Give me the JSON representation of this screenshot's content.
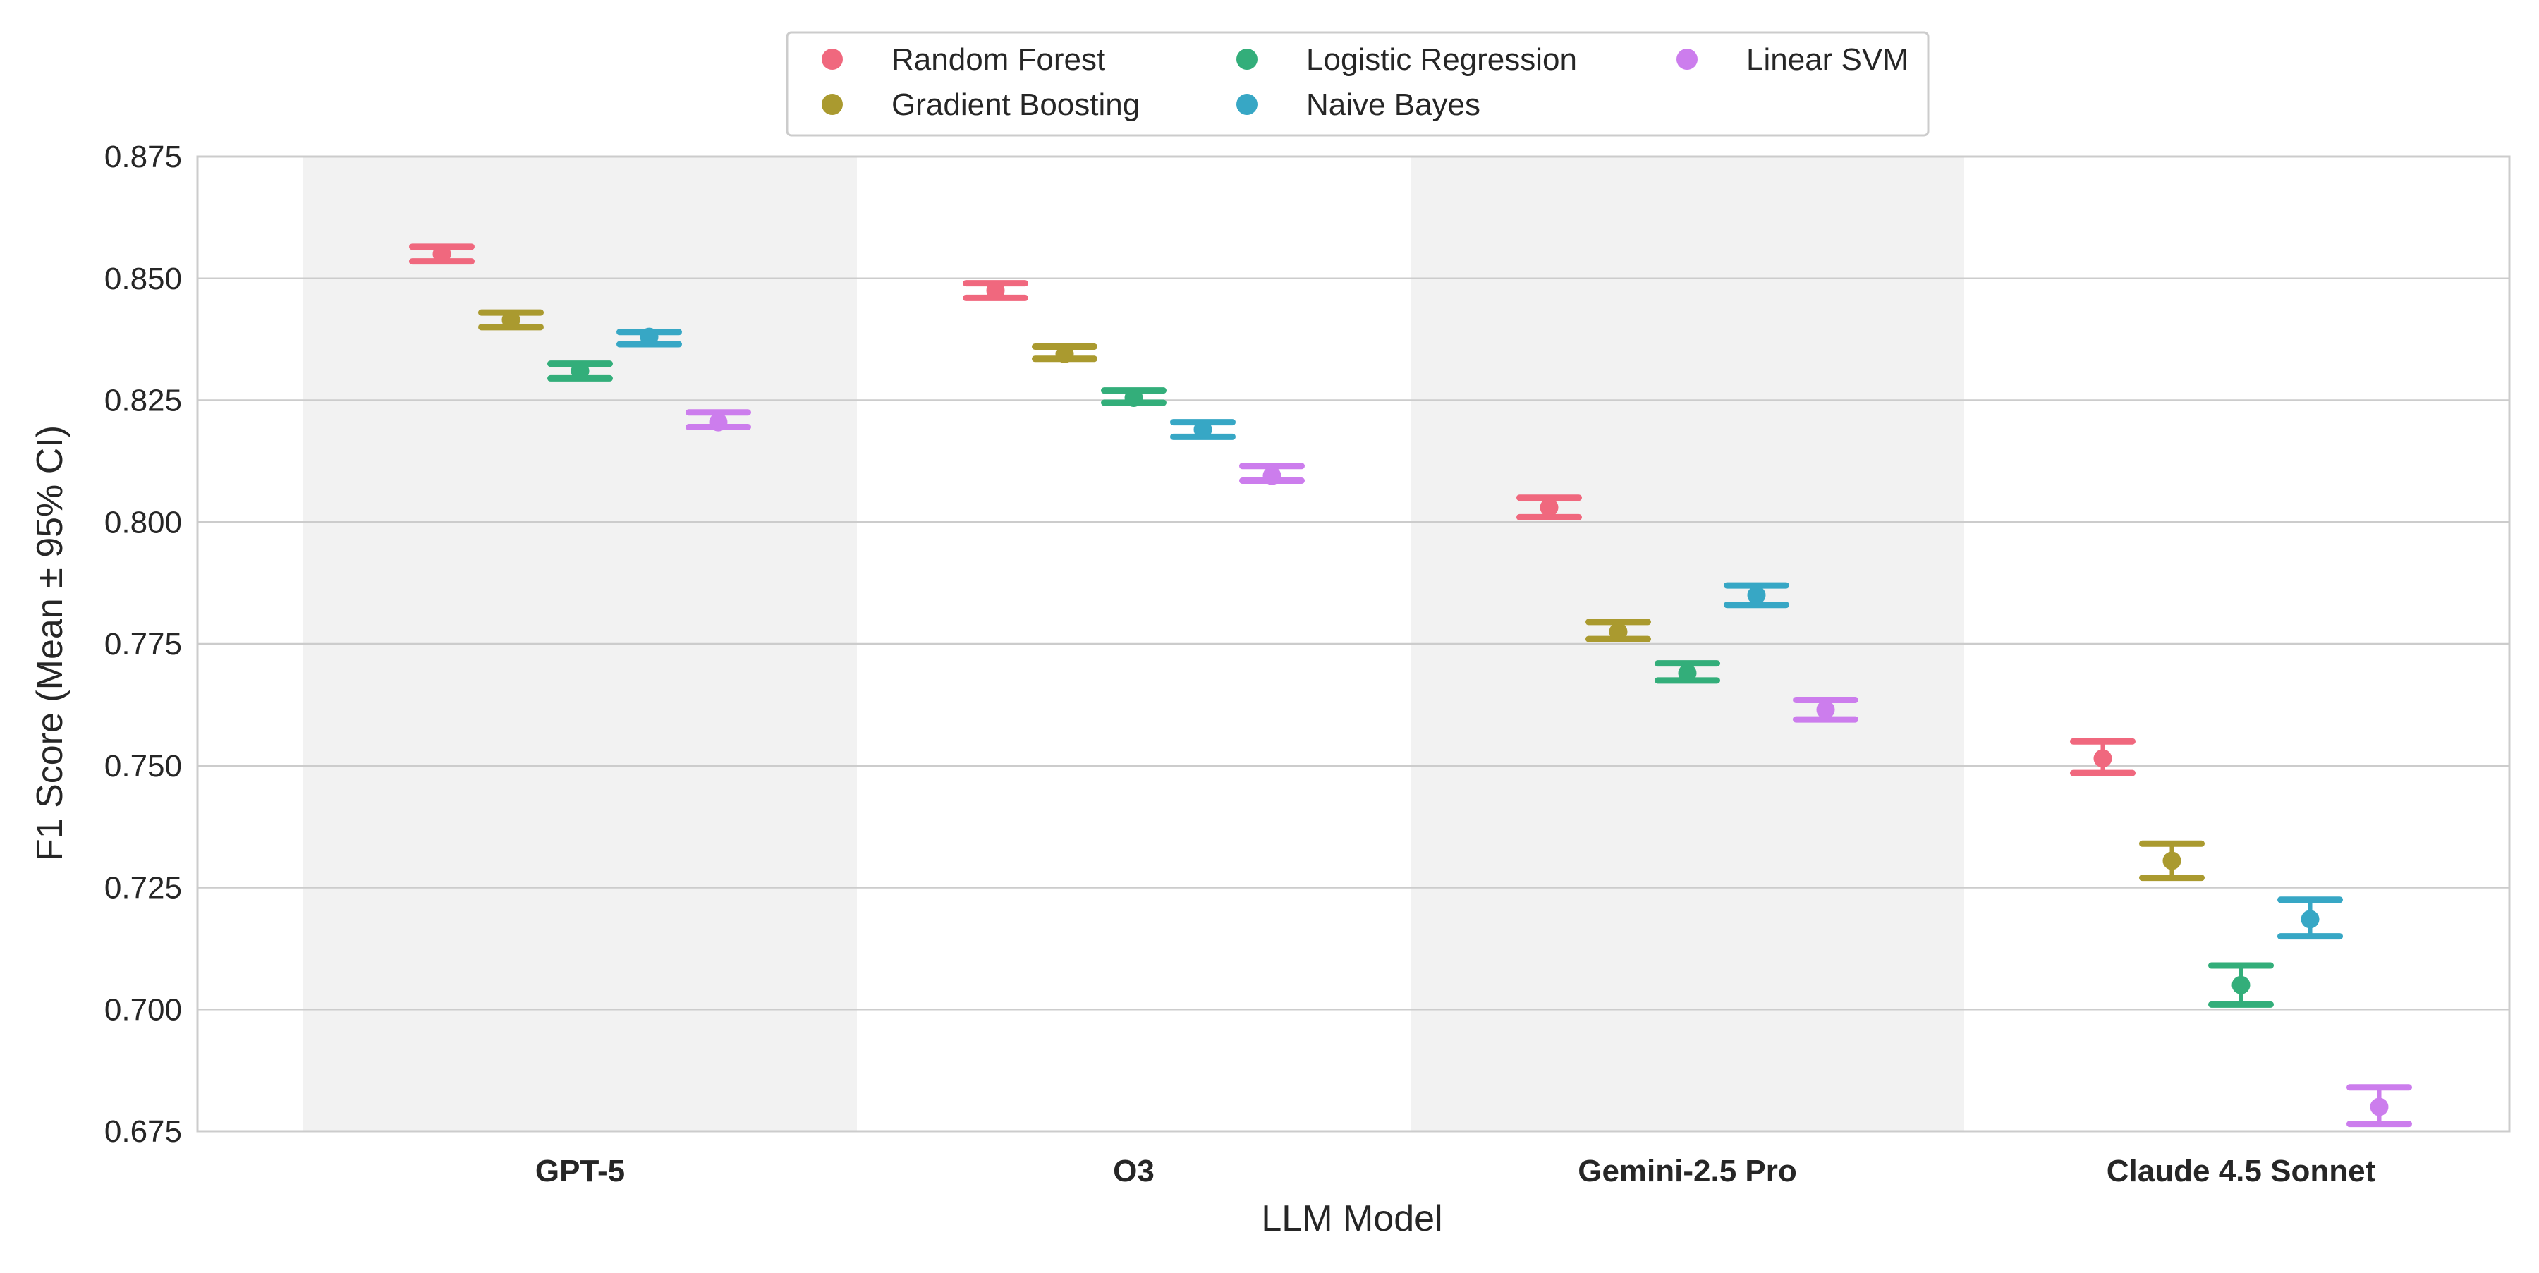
{
  "chart_data": {
    "type": "scatter",
    "xlabel": "LLM Model",
    "ylabel": "F1 Score (Mean ± 95% CI)",
    "ylim": [
      0.675,
      0.875
    ],
    "yticks": [
      "0.675",
      "0.700",
      "0.725",
      "0.750",
      "0.775",
      "0.800",
      "0.825",
      "0.850",
      "0.875"
    ],
    "grid": "horizontal",
    "legend_position": "top-center",
    "categories": [
      "GPT-5",
      "O3",
      "Gemini-2.5 Pro",
      "Claude 4.5 Sonnet"
    ],
    "shaded_categories": [
      0,
      2
    ],
    "series": [
      {
        "name": "Random Forest",
        "color": "#f0687e",
        "mean": [
          0.855,
          0.8475,
          0.803,
          0.7515
        ],
        "lower": [
          0.8535,
          0.846,
          0.801,
          0.7485
        ],
        "upper": [
          0.8565,
          0.849,
          0.805,
          0.755
        ]
      },
      {
        "name": "Gradient Boosting",
        "color": "#aa9a2f",
        "mean": [
          0.8415,
          0.8345,
          0.7775,
          0.7305
        ],
        "lower": [
          0.84,
          0.8335,
          0.776,
          0.727
        ],
        "upper": [
          0.843,
          0.836,
          0.7795,
          0.734
        ]
      },
      {
        "name": "Logistic Regression",
        "color": "#33ae7a",
        "mean": [
          0.831,
          0.8255,
          0.769,
          0.705
        ],
        "lower": [
          0.8295,
          0.8245,
          0.7675,
          0.701
        ],
        "upper": [
          0.8325,
          0.827,
          0.771,
          0.709
        ]
      },
      {
        "name": "Naive Bayes",
        "color": "#37a7c5",
        "mean": [
          0.838,
          0.819,
          0.785,
          0.7185
        ],
        "lower": [
          0.8365,
          0.8175,
          0.783,
          0.715
        ],
        "upper": [
          0.839,
          0.8205,
          0.787,
          0.7225
        ]
      },
      {
        "name": "Linear SVM",
        "color": "#cc7ded",
        "mean": [
          0.8205,
          0.8095,
          0.7615,
          0.68
        ],
        "lower": [
          0.8195,
          0.8085,
          0.7595,
          0.6765
        ],
        "upper": [
          0.8225,
          0.8115,
          0.7635,
          0.684
        ]
      }
    ]
  }
}
